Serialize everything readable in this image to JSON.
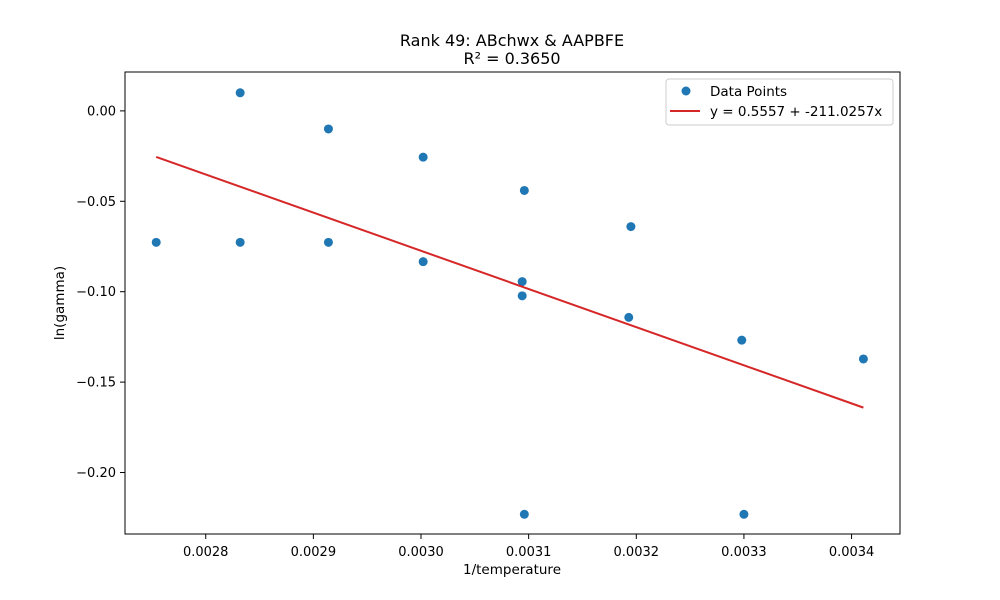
{
  "chart_data": {
    "type": "scatter",
    "title": "Rank 49: ABchwx & AAPBFE",
    "subtitle": "R² = 0.3650",
    "xlabel": "1/temperature",
    "ylabel": "ln(gamma)",
    "xlim": [
      0.002725,
      0.003445
    ],
    "ylim": [
      -0.234,
      0.0215
    ],
    "x_ticks": [
      0.0028,
      0.0029,
      0.003,
      0.0031,
      0.0032,
      0.0033,
      0.0034
    ],
    "x_tick_labels": [
      "0.0028",
      "0.0029",
      "0.0030",
      "0.0031",
      "0.0032",
      "0.0033",
      "0.0034"
    ],
    "y_ticks": [
      0.0,
      -0.05,
      -0.1,
      -0.15,
      -0.2
    ],
    "y_tick_labels": [
      "0.00",
      "−0.05",
      "−0.10",
      "−0.15",
      "−0.20"
    ],
    "grid": false,
    "legend_position": "top-right",
    "series": [
      {
        "name": "Data Points",
        "kind": "scatter",
        "color": "#1f77b4",
        "points": [
          [
            0.002754,
            -0.0727
          ],
          [
            0.002832,
            0.01
          ],
          [
            0.002832,
            -0.0727
          ],
          [
            0.002914,
            -0.01
          ],
          [
            0.002914,
            -0.0727
          ],
          [
            0.003002,
            -0.0256
          ],
          [
            0.003002,
            -0.0834
          ],
          [
            0.003096,
            -0.044
          ],
          [
            0.003094,
            -0.0944
          ],
          [
            0.003094,
            -0.1023
          ],
          [
            0.003096,
            -0.2231
          ],
          [
            0.003195,
            -0.064
          ],
          [
            0.003193,
            -0.1142
          ],
          [
            0.003298,
            -0.1268
          ],
          [
            0.0033,
            -0.2231
          ],
          [
            0.003411,
            -0.1372
          ]
        ]
      },
      {
        "name": "y = 0.5557 + -211.0257x",
        "kind": "line",
        "color": "#d62728",
        "intercept": 0.5557,
        "slope": -211.0257,
        "x_range": [
          0.002754,
          0.003411
        ]
      }
    ]
  }
}
